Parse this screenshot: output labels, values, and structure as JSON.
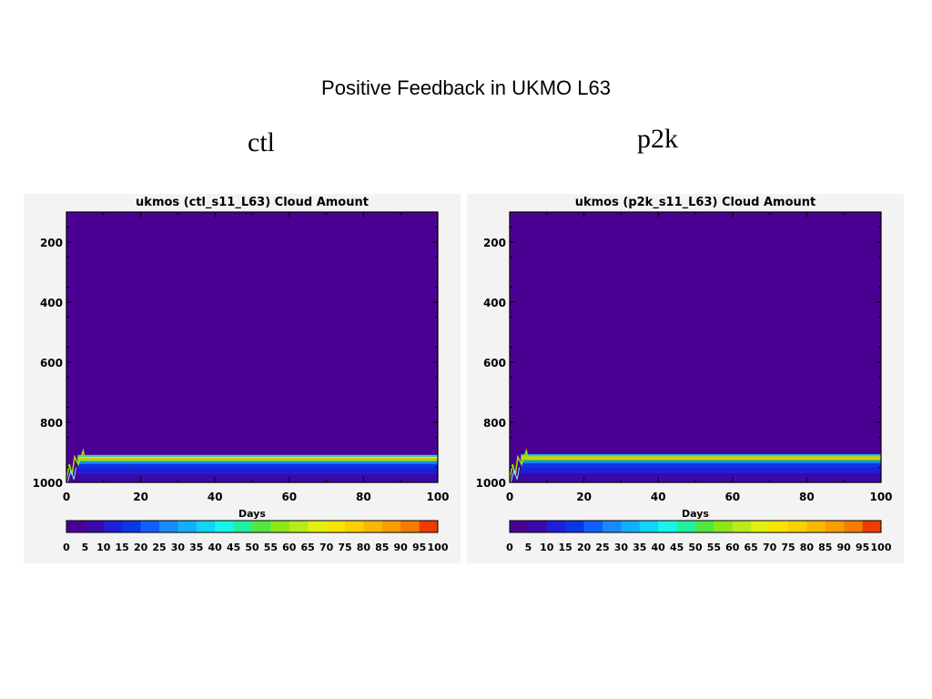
{
  "slide": {
    "title": "Positive Feedback in UKMO L63",
    "labels": [
      "ctl",
      "p2k"
    ]
  },
  "chart_data": [
    {
      "type": "heatmap",
      "title": "ukmos (ctl_s11_L63) Cloud Amount",
      "xlabel": "Days",
      "ylabel": "",
      "xlim": [
        0,
        100
      ],
      "ylim": [
        1000,
        100
      ],
      "x_ticks": [
        0,
        20,
        40,
        60,
        80,
        100
      ],
      "y_ticks": [
        200,
        400,
        600,
        800,
        1000
      ],
      "background_value": 0,
      "features": [
        {
          "pressure": 905,
          "value": 3
        },
        {
          "pressure": 912,
          "value": 35
        },
        {
          "pressure": 917,
          "value": 65
        },
        {
          "pressure": 922,
          "value": 80
        },
        {
          "pressure": 927,
          "value": 55
        },
        {
          "pressure": 933,
          "value": 25
        },
        {
          "pressure": 945,
          "value": 15
        },
        {
          "pressure": 962,
          "value": 10
        },
        {
          "pressure": 982,
          "value": 5
        }
      ],
      "colorbar": {
        "levels": [
          0,
          5,
          10,
          15,
          20,
          25,
          30,
          35,
          40,
          45,
          50,
          55,
          60,
          65,
          70,
          75,
          80,
          85,
          90,
          95,
          100
        ],
        "tick_labels": [
          "0",
          "5",
          "10",
          "15",
          "20",
          "25",
          "30",
          "35",
          "40",
          "45",
          "50",
          "55",
          "60",
          "65",
          "70",
          "75",
          "80",
          "85",
          "90",
          "95",
          "100"
        ],
        "colors": [
          "#4b0094",
          "#3a0aa8",
          "#1f1fd6",
          "#0a36e8",
          "#1060ff",
          "#1a88ff",
          "#10b0ff",
          "#10d4f8",
          "#18f4e8",
          "#20f0a0",
          "#50e840",
          "#8ce818",
          "#b8ec18",
          "#e0f010",
          "#f8e400",
          "#fcd000",
          "#fcb800",
          "#f89c00",
          "#f47c00",
          "#f03a00"
        ]
      }
    },
    {
      "type": "heatmap",
      "title": "ukmos (p2k_s11_L63) Cloud Amount",
      "xlabel": "Days",
      "ylabel": "",
      "xlim": [
        0,
        100
      ],
      "ylim": [
        1000,
        100
      ],
      "x_ticks": [
        0,
        20,
        40,
        60,
        80,
        100
      ],
      "y_ticks": [
        200,
        400,
        600,
        800,
        1000
      ],
      "background_value": 0,
      "features": [
        {
          "pressure": 903,
          "value": 3
        },
        {
          "pressure": 910,
          "value": 35
        },
        {
          "pressure": 915,
          "value": 60
        },
        {
          "pressure": 920,
          "value": 75
        },
        {
          "pressure": 925,
          "value": 50
        },
        {
          "pressure": 931,
          "value": 25
        },
        {
          "pressure": 943,
          "value": 15
        },
        {
          "pressure": 960,
          "value": 10
        },
        {
          "pressure": 980,
          "value": 5
        }
      ],
      "colorbar": {
        "levels": [
          0,
          5,
          10,
          15,
          20,
          25,
          30,
          35,
          40,
          45,
          50,
          55,
          60,
          65,
          70,
          75,
          80,
          85,
          90,
          95,
          100
        ],
        "tick_labels": [
          "0",
          "5",
          "10",
          "15",
          "20",
          "25",
          "30",
          "35",
          "40",
          "45",
          "50",
          "55",
          "60",
          "65",
          "70",
          "75",
          "80",
          "85",
          "90",
          "95",
          "100"
        ],
        "colors": [
          "#4b0094",
          "#3a0aa8",
          "#1f1fd6",
          "#0a36e8",
          "#1060ff",
          "#1a88ff",
          "#10b0ff",
          "#10d4f8",
          "#18f4e8",
          "#20f0a0",
          "#50e840",
          "#8ce818",
          "#b8ec18",
          "#e0f010",
          "#f8e400",
          "#fcd000",
          "#fcb800",
          "#f89c00",
          "#f47c00",
          "#f03a00"
        ]
      }
    }
  ]
}
